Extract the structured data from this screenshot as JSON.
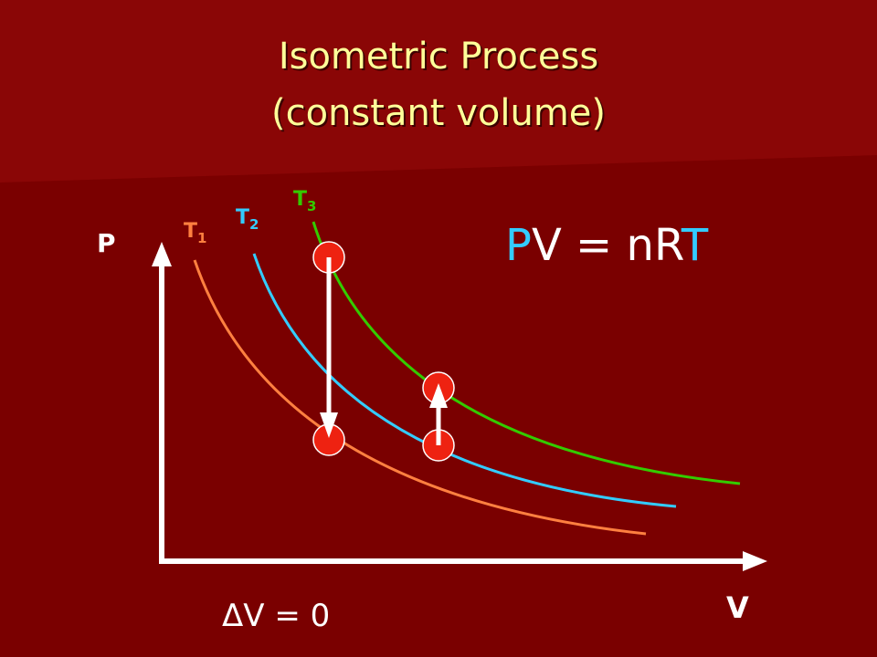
{
  "title": {
    "line1": "Isometric Process",
    "line2": "(constant volume)"
  },
  "axes": {
    "y": "P",
    "x": "V"
  },
  "curves": [
    {
      "label": "T",
      "subscript": "1",
      "color": "#ff8040"
    },
    {
      "label": "T",
      "subscript": "2",
      "color": "#33ccff"
    },
    {
      "label": "T",
      "subscript": "3",
      "color": "#33cc00"
    }
  ],
  "equation": {
    "parts": [
      "P",
      "V = nR",
      "T"
    ]
  },
  "note": "ΔV = 0"
}
